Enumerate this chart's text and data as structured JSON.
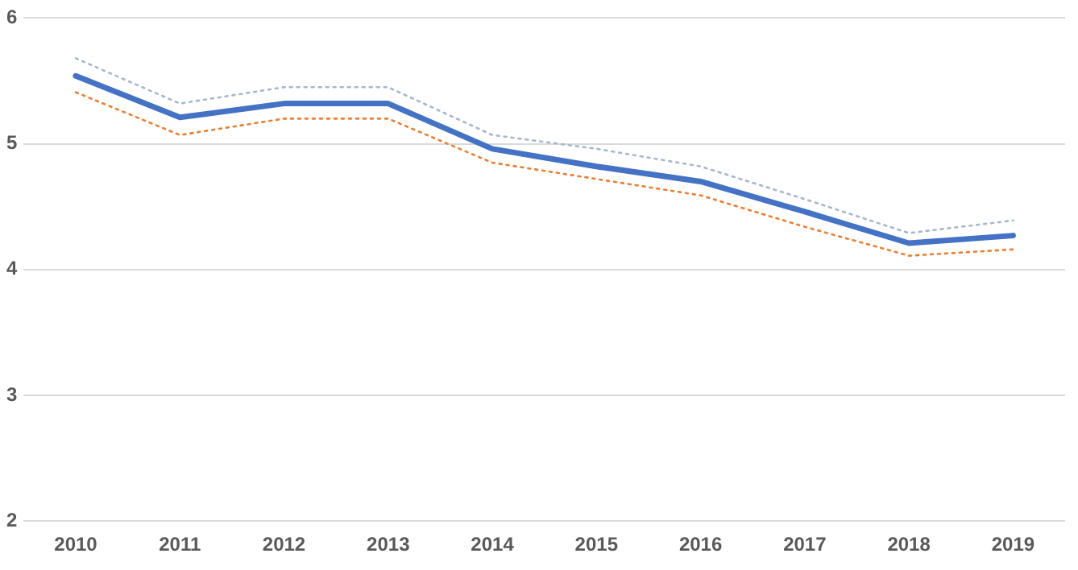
{
  "chart_data": {
    "type": "line",
    "categories": [
      "2010",
      "2011",
      "2012",
      "2013",
      "2014",
      "2015",
      "2016",
      "2017",
      "2018",
      "2019"
    ],
    "series": [
      {
        "color": "#a5b8cc",
        "line_style": "dotted",
        "values": [
          5.68,
          5.32,
          5.45,
          5.45,
          5.07,
          4.96,
          4.82,
          4.56,
          4.29,
          4.39
        ]
      },
      {
        "color": "#ed7d31",
        "line_style": "dotted",
        "values": [
          5.41,
          5.07,
          5.2,
          5.2,
          4.85,
          4.72,
          4.59,
          4.34,
          4.11,
          4.16
        ]
      },
      {
        "color": "#4472c4",
        "line_style": "solid",
        "values": [
          5.54,
          5.21,
          5.32,
          5.32,
          4.96,
          4.82,
          4.7,
          4.46,
          4.21,
          4.27
        ]
      }
    ],
    "ylim": [
      2,
      6
    ],
    "yticks": [
      2,
      3,
      4,
      5,
      6
    ],
    "grid": "y",
    "legend": false,
    "marker": "none"
  }
}
